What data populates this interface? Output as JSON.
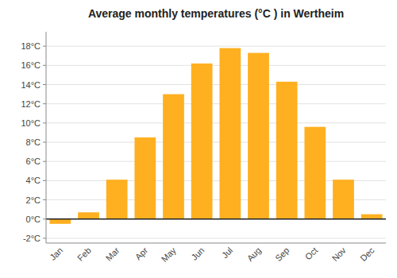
{
  "chart_data": {
    "type": "bar",
    "title": "Average monthly temperatures (°C ) in Wertheim",
    "categories": [
      "Jan",
      "Feb",
      "Mar",
      "Apr",
      "May",
      "Jun",
      "Jul",
      "Aug",
      "Sep",
      "Oct",
      "Nov",
      "Dec"
    ],
    "values": [
      -0.5,
      0.7,
      4.1,
      8.5,
      13.0,
      16.2,
      17.8,
      17.3,
      14.3,
      9.6,
      4.1,
      0.5
    ],
    "color": "#FFB020",
    "ylim": [
      -2.5,
      19.5
    ],
    "yticks": [
      {
        "value": -2,
        "label": "-2°C"
      },
      {
        "value": 0,
        "label": "0°C"
      },
      {
        "value": 2,
        "label": "2°C"
      },
      {
        "value": 4,
        "label": "4°C"
      },
      {
        "value": 6,
        "label": "6°C"
      },
      {
        "value": 8,
        "label": "8°C"
      },
      {
        "value": 10,
        "label": "10°C"
      },
      {
        "value": 12,
        "label": "12°C"
      },
      {
        "value": 14,
        "label": "14°C"
      },
      {
        "value": 16,
        "label": "16°C"
      },
      {
        "value": 18,
        "label": "18°C"
      }
    ],
    "grid": true
  }
}
